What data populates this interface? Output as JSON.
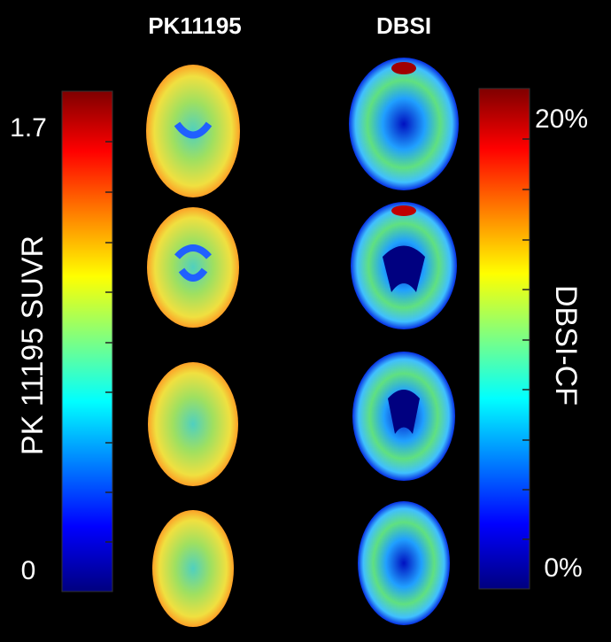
{
  "columns": {
    "left": "PK11195",
    "right": "DBSI"
  },
  "left_colorbar": {
    "label": "PK 11195 SUVR",
    "max_label": "1.7",
    "min_label": "0"
  },
  "right_colorbar": {
    "label": "DBSI-CF",
    "max_label": "20%",
    "min_label": "0%"
  }
}
